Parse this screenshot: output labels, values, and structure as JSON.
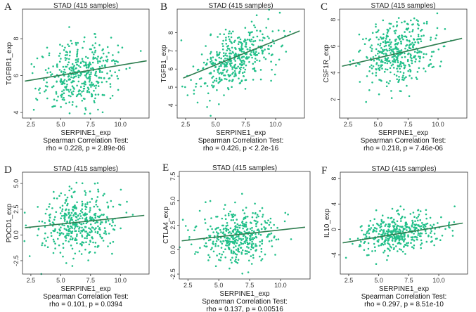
{
  "chart_data": [
    {
      "type": "scatter",
      "letter": "A",
      "title": "STAD (415 samples)",
      "xlabel": "SERPINE1_exp",
      "ylabel": "TGFBR1_exp",
      "xlim": [
        1.8,
        12.4
      ],
      "ylim": [
        3.7,
        9.6
      ],
      "xticks": [
        "2.5",
        "5.0",
        "7.5",
        "10.0"
      ],
      "xtick_values": [
        2.5,
        5.0,
        7.5,
        10.0
      ],
      "yticks": [
        "4",
        "6",
        "8"
      ],
      "ytick_values": [
        4,
        6,
        8
      ],
      "stat_title": "Spearman Correlation Test:",
      "stat": "rho = 0.228, p = 2.89e-06",
      "rho": 0.228,
      "n": 415,
      "x_mean": 6.6,
      "x_sd": 1.6,
      "y_mean": 6.1,
      "y_sd": 0.9,
      "fit": [
        [
          2.0,
          5.7
        ],
        [
          12.2,
          6.8
        ]
      ]
    },
    {
      "type": "scatter",
      "letter": "B",
      "title": "STAD (415 samples)",
      "xlabel": "SERPINE1_exp",
      "ylabel": "TGFB1_exp",
      "xlim": [
        1.8,
        12.4
      ],
      "ylim": [
        3.3,
        9.3
      ],
      "xticks": [
        "2.5",
        "5.0",
        "7.5",
        "10.0"
      ],
      "xtick_values": [
        2.5,
        5.0,
        7.5,
        10.0
      ],
      "yticks": [
        "4",
        "5",
        "6",
        "7",
        "8"
      ],
      "ytick_values": [
        4,
        5,
        6,
        7,
        8
      ],
      "stat_title": "Spearman Correlation Test:",
      "stat": "rho = 0.426, p < 2.2e-16",
      "rho": 0.426,
      "n": 415,
      "x_mean": 6.6,
      "x_sd": 1.6,
      "y_mean": 6.5,
      "y_sd": 0.9,
      "fit": [
        [
          2.3,
          5.5
        ],
        [
          12.0,
          8.1
        ]
      ]
    },
    {
      "type": "scatter",
      "letter": "C",
      "title": "STAD (415 samples)",
      "xlabel": "SERPINE1_exp",
      "ylabel": "CSF1R_exp",
      "xlim": [
        1.8,
        12.4
      ],
      "ylim": [
        0.6,
        8.8
      ],
      "xticks": [
        "2.5",
        "5.0",
        "7.5",
        "10.0"
      ],
      "xtick_values": [
        2.5,
        5.0,
        7.5,
        10.0
      ],
      "yticks": [
        "2",
        "4",
        "6",
        "8"
      ],
      "ytick_values": [
        2,
        4,
        6,
        8
      ],
      "stat_title": "Spearman Correlation Test:",
      "stat": "rho = 0.218, p = 7.46e-06",
      "rho": 0.218,
      "n": 415,
      "x_mean": 6.6,
      "x_sd": 1.6,
      "y_mean": 5.5,
      "y_sd": 1.3,
      "fit": [
        [
          2.0,
          4.5
        ],
        [
          12.0,
          6.6
        ]
      ]
    },
    {
      "type": "scatter",
      "letter": "D",
      "title": "STAD (415 samples)",
      "xlabel": "SERPINE1_exp",
      "ylabel": "PDCD1_exp",
      "xlim": [
        1.8,
        12.4
      ],
      "ylim": [
        -3.8,
        6.1
      ],
      "xticks": [
        "2.5",
        "5.0",
        "7.5",
        "10.0"
      ],
      "xtick_values": [
        2.5,
        5.0,
        7.5,
        10.0
      ],
      "yticks": [
        "-2.5",
        "0.0",
        "2.5",
        "5.0"
      ],
      "ytick_values": [
        -2.5,
        0.0,
        2.5,
        5.0
      ],
      "stat_title": "Spearman Correlation Test:",
      "stat": "rho = 0.101, p = 0.0394",
      "rho": 0.101,
      "n": 415,
      "x_mean": 6.6,
      "x_sd": 1.6,
      "y_mean": 1.3,
      "y_sd": 1.5,
      "fit": [
        [
          2.0,
          0.7
        ],
        [
          12.0,
          1.9
        ]
      ]
    },
    {
      "type": "scatter",
      "letter": "E",
      "title": "STAD (415 samples)",
      "xlabel": "SERPINE1_exp",
      "ylabel": "CTLA4_exp",
      "xlim": [
        1.8,
        12.4
      ],
      "ylim": [
        -3.0,
        8.0
      ],
      "xticks": [
        "2.5",
        "5.0",
        "7.5",
        "10.0"
      ],
      "xtick_values": [
        2.5,
        5.0,
        7.5,
        10.0
      ],
      "yticks": [
        "-2.5",
        "0.0",
        "2.5",
        "5.0",
        "7.5"
      ],
      "ytick_values": [
        -2.5,
        0.0,
        2.5,
        5.0,
        7.5
      ],
      "stat_title": "Spearman Correlation Test:",
      "stat": "rho = 0.137, p = 0.00516",
      "rho": 0.137,
      "n": 415,
      "x_mean": 6.6,
      "x_sd": 1.6,
      "y_mean": 1.3,
      "y_sd": 1.3,
      "fit": [
        [
          2.0,
          0.9
        ],
        [
          12.0,
          2.3
        ]
      ]
    },
    {
      "type": "scatter",
      "letter": "F",
      "title": "STAD (415 samples)",
      "xlabel": "SERPINE1_exp",
      "ylabel": "IL10_exp",
      "xlim": [
        1.8,
        12.4
      ],
      "ylim": [
        -7.0,
        9.0
      ],
      "xticks": [
        "2.5",
        "5.0",
        "7.5",
        "10.0"
      ],
      "xtick_values": [
        2.5,
        5.0,
        7.5,
        10.0
      ],
      "yticks": [
        "-4",
        "0",
        "4",
        "8"
      ],
      "ytick_values": [
        -4,
        0,
        4,
        8
      ],
      "stat_title": "Spearman Correlation Test:",
      "stat": "rho = 0.297, p = 8.51e-10",
      "rho": 0.297,
      "n": 415,
      "x_mean": 6.6,
      "x_sd": 1.6,
      "y_mean": -0.6,
      "y_sd": 1.5,
      "fit": [
        [
          2.0,
          -2.1
        ],
        [
          12.0,
          1.0
        ]
      ]
    }
  ]
}
